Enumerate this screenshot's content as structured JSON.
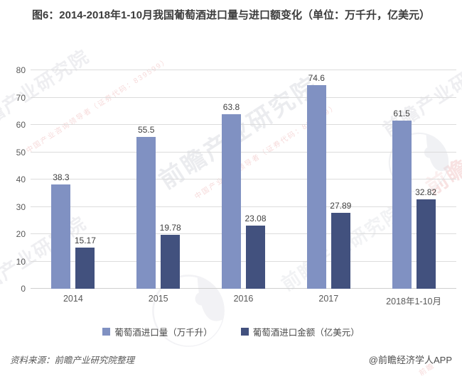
{
  "title": "图6：2014-2018年1-10月我国葡萄酒进口量与进口额变化（单位：万千升，亿美元）",
  "chart_data": {
    "type": "bar",
    "categories": [
      "2014",
      "2015",
      "2016",
      "2017",
      "2018年1-10月"
    ],
    "series": [
      {
        "name": "葡萄酒进口量（万千升）",
        "color": "#8091C2",
        "values": [
          38.3,
          55.5,
          63.8,
          74.6,
          61.5
        ],
        "labels": [
          "38.3",
          "55.5",
          "63.8",
          "74.6",
          "61.5"
        ]
      },
      {
        "name": "葡萄酒进口金额（亿美元）",
        "color": "#42517E",
        "values": [
          15.17,
          19.78,
          23.08,
          27.89,
          32.82
        ],
        "labels": [
          "15.17",
          "19.78",
          "23.08",
          "27.89",
          "32.82"
        ]
      }
    ],
    "ylim": [
      0,
      80
    ],
    "yticks": [
      0,
      10,
      20,
      30,
      40,
      50,
      60,
      70,
      80
    ],
    "grid": true,
    "legend_position": "bottom",
    "grid_color": "#DCDCDC",
    "tick_color": "#595959",
    "value_label_color": "#3F3F3F"
  },
  "footer": {
    "source": "资料来源：前瞻产业研究院整理",
    "credit": "@前瞻经济学人APP"
  },
  "watermark": {
    "brand": "前瞻产业研究院",
    "tagline": "中国产业咨询领导者（证券代码：839599）",
    "short": "前瞻"
  }
}
